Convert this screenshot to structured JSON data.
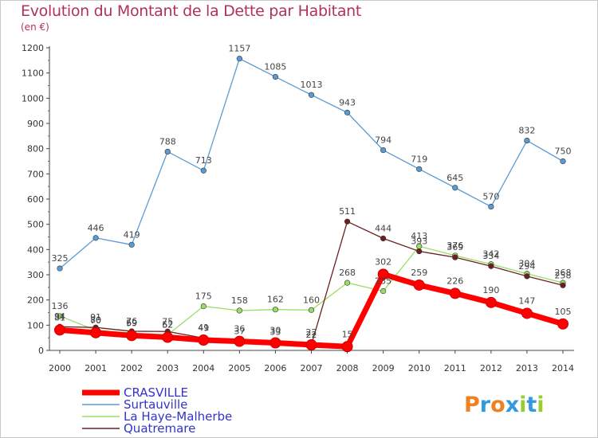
{
  "title": "Evolution du Montant de la Dette par Habitant",
  "unit_label": "(en €)",
  "brand": {
    "letters": [
      "P",
      "r",
      "o",
      "x",
      "i",
      "t",
      "i"
    ],
    "colors": [
      "#f08020",
      "#3399dd",
      "#f08020",
      "#3399dd",
      "#99cc33",
      "#3399dd",
      "#99cc33"
    ]
  },
  "chart_data": {
    "type": "line",
    "title": "Evolution du Montant de la Dette par Habitant",
    "ylabel": "(en €)",
    "xlabel": "",
    "x": [
      2000,
      2001,
      2002,
      2003,
      2004,
      2005,
      2006,
      2007,
      2008,
      2009,
      2010,
      2011,
      2012,
      2013,
      2014
    ],
    "ylim": [
      0,
      1200
    ],
    "yticks": [
      0,
      100,
      200,
      300,
      400,
      500,
      600,
      700,
      800,
      900,
      1000,
      1100,
      1200
    ],
    "grid": false,
    "legend_position": "bottom-left",
    "series": [
      {
        "name": "CRASVILLE",
        "color": "#ff0000",
        "values": [
          81,
          70,
          59,
          52,
          41,
          36,
          30,
          22,
          15,
          302,
          259,
          226,
          190,
          147,
          105
        ]
      },
      {
        "name": "Surtauville",
        "color": "#5b9bd5",
        "values": [
          325,
          446,
          419,
          788,
          713,
          1157,
          1085,
          1013,
          943,
          794,
          719,
          645,
          570,
          832,
          750
        ]
      },
      {
        "name": "La Haye-Malherbe",
        "color": "#99dd66",
        "values": [
          136,
          80,
          69,
          62,
          175,
          158,
          162,
          160,
          268,
          235,
          413,
          376,
          342,
          304,
          268
        ]
      },
      {
        "name": "Quatremare",
        "color": "#6b2020",
        "values": [
          94,
          91,
          76,
          75,
          49,
          37,
          33,
          22,
          511,
          444,
          393,
          369,
          334,
          294,
          258
        ]
      }
    ]
  }
}
